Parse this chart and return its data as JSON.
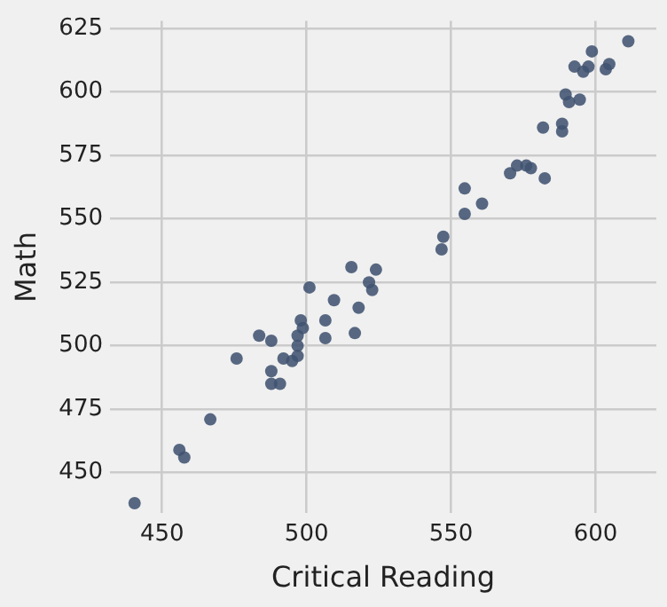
{
  "chart_data": {
    "type": "scatter",
    "xlabel": "Critical Reading",
    "ylabel": "Math",
    "x": [
      440.5,
      456,
      457.7,
      466.7,
      475.8,
      483.6,
      487.8,
      487.8,
      487.8,
      490.8,
      492,
      495,
      496.9,
      496.9,
      496.9,
      498,
      498.7,
      501,
      506.5,
      506.5,
      509.5,
      515.5,
      516.7,
      518,
      521.6,
      522.7,
      524,
      547.3,
      546.7,
      554.7,
      554.7,
      560.7,
      570.4,
      572.8,
      576,
      577.6,
      582.4,
      581.8,
      588.4,
      588.4,
      589.6,
      590.8,
      594.5,
      592.7,
      595.7,
      597.5,
      598.7,
      603.5,
      604.7,
      611.3
    ],
    "values": [
      438,
      459,
      456,
      471,
      495,
      504,
      502,
      490,
      485,
      485,
      495,
      494,
      496,
      500,
      504,
      510,
      507,
      523,
      510,
      503,
      518,
      531,
      505,
      515,
      525,
      522,
      530,
      543,
      538,
      562,
      552,
      556,
      568,
      571,
      571,
      570,
      566,
      586,
      587.5,
      584.5,
      599,
      596,
      597,
      610,
      608,
      610,
      616,
      609,
      611,
      620
    ],
    "color": "#3f5270",
    "marker": "circle",
    "xlim": [
      432,
      621
    ],
    "ylim": [
      434,
      628
    ],
    "xticks": [
      450,
      500,
      550,
      600
    ],
    "yticks": [
      450,
      475,
      500,
      525,
      550,
      575,
      600,
      625
    ],
    "grid": true
  }
}
